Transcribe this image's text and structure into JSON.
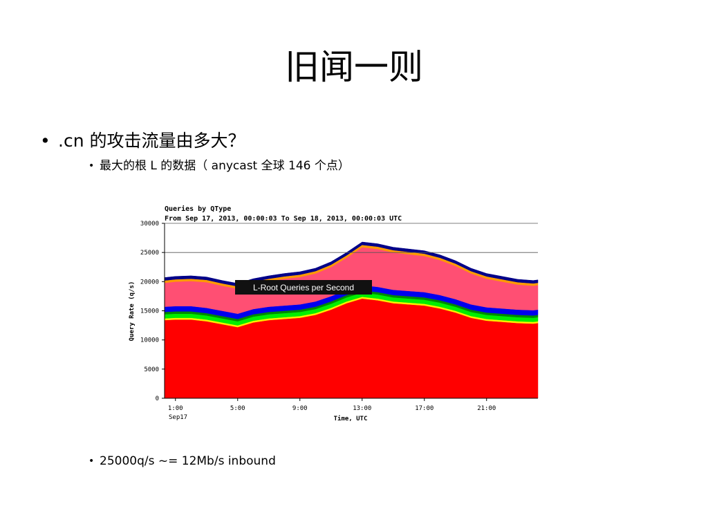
{
  "slide": {
    "title": "旧闻一则",
    "bullet1": ".cn 的攻击流量由多大？",
    "bullet2": "最大的根 L 的数据（ anycast 全球 146 个点）",
    "bullet3": "25000q/s ~= 12Mb/s inbound",
    "bullet_glyph": "•"
  },
  "chart_data": {
    "type": "area",
    "title": "Queries by QType",
    "subtitle": "From Sep 17, 2013, 00:00:03 To Sep 18, 2013, 00:00:03 UTC",
    "overlay_label": "L-Root Queries per Second",
    "xlabel": "Time, UTC",
    "ylabel": "Query Rate (q/s)",
    "x_ticks": [
      "1:00",
      "5:00",
      "9:00",
      "13:00",
      "17:00",
      "21:00"
    ],
    "x_tick_hours": [
      1,
      5,
      9,
      13,
      17,
      21
    ],
    "x_sublabel": "Sep17",
    "xlim": [
      0.3,
      24.3
    ],
    "y_ticks": [
      "0",
      "5000",
      "10000",
      "15000",
      "20000",
      "25000",
      "30000"
    ],
    "y_tick_values": [
      0,
      5000,
      10000,
      15000,
      20000,
      25000,
      30000
    ],
    "ylim": [
      0,
      30000
    ],
    "x": [
      0.3,
      1,
      2,
      3,
      4,
      5,
      6,
      7,
      8,
      9,
      10,
      11,
      12,
      13,
      14,
      15,
      16,
      17,
      18,
      19,
      20,
      21,
      22,
      23,
      24,
      24.3
    ],
    "series": [
      {
        "name": "red",
        "color": "#ff0000",
        "values": [
          13400,
          13500,
          13500,
          13200,
          12700,
          12200,
          13000,
          13400,
          13600,
          13800,
          14300,
          15200,
          16300,
          17100,
          16800,
          16300,
          16100,
          15900,
          15400,
          14700,
          13800,
          13300,
          13100,
          12900,
          12800,
          12900
        ]
      },
      {
        "name": "yellow",
        "color": "#ffee00",
        "values": [
          300,
          300,
          300,
          300,
          300,
          300,
          300,
          300,
          300,
          300,
          300,
          300,
          300,
          300,
          300,
          300,
          300,
          300,
          300,
          300,
          300,
          300,
          300,
          300,
          300,
          300
        ]
      },
      {
        "name": "green",
        "color": "#00ee00",
        "values": [
          700,
          700,
          700,
          700,
          700,
          700,
          700,
          700,
          700,
          700,
          700,
          700,
          700,
          700,
          700,
          700,
          700,
          700,
          700,
          700,
          700,
          700,
          700,
          700,
          700,
          700
        ]
      },
      {
        "name": "dark-green",
        "color": "#008800",
        "values": [
          400,
          400,
          400,
          400,
          400,
          400,
          400,
          400,
          400,
          400,
          400,
          400,
          400,
          400,
          400,
          400,
          400,
          400,
          400,
          400,
          400,
          400,
          400,
          400,
          400,
          400
        ]
      },
      {
        "name": "blue",
        "color": "#0000ee",
        "values": [
          900,
          900,
          900,
          900,
          900,
          900,
          900,
          900,
          900,
          900,
          900,
          900,
          900,
          900,
          900,
          900,
          900,
          900,
          900,
          900,
          900,
          900,
          900,
          900,
          900,
          900
        ]
      },
      {
        "name": "pink",
        "color": "#ff4f73",
        "values": [
          4100,
          4200,
          4300,
          4400,
          4300,
          4300,
          4300,
          4400,
          4600,
          4700,
          4800,
          5000,
          5500,
          6500,
          6500,
          6400,
          6300,
          6200,
          6000,
          5700,
          5300,
          4900,
          4600,
          4300,
          4200,
          4200
        ]
      },
      {
        "name": "orange",
        "color": "#ff9a00",
        "values": [
          400,
          400,
          400,
          400,
          400,
          400,
          400,
          400,
          400,
          400,
          400,
          400,
          400,
          400,
          400,
          400,
          400,
          400,
          400,
          400,
          400,
          400,
          400,
          400,
          400,
          400
        ]
      },
      {
        "name": "navy",
        "color": "#000088",
        "values": [
          500,
          500,
          500,
          500,
          500,
          500,
          500,
          500,
          500,
          500,
          500,
          500,
          500,
          500,
          500,
          500,
          500,
          500,
          500,
          500,
          500,
          500,
          500,
          500,
          500,
          500
        ]
      }
    ],
    "gridlines": [
      25000,
      30000
    ]
  }
}
